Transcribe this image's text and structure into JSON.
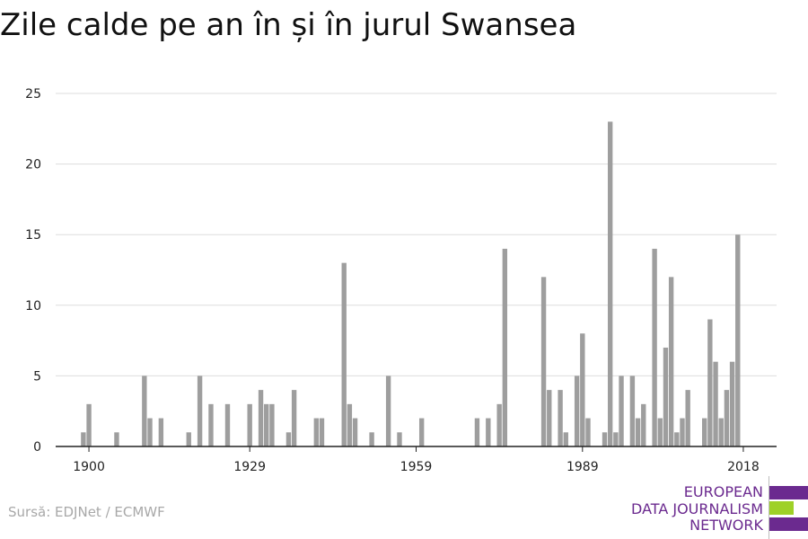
{
  "title": "Zile calde pe an în și în jurul Swansea",
  "source": "Sursă: EDJNet / ECMWF",
  "logo": {
    "lines": [
      "EUROPEAN",
      "DATA JOURNALISM",
      "NETWORK"
    ],
    "text_color": "#6b2a8f",
    "bar_colors": [
      "#6b2a8f",
      "#9ed127",
      "#6b2a8f"
    ]
  },
  "colors": {
    "bar": "#9e9e9e",
    "grid": "#dddddd",
    "axis": "#222222"
  },
  "chart_data": {
    "type": "bar",
    "title": "Zile calde pe an în și în jurul Swansea",
    "xlabel": "",
    "ylabel": "",
    "xlim": [
      1894,
      2024
    ],
    "ylim": [
      0,
      25
    ],
    "y_ticks": [
      0,
      5,
      10,
      15,
      20,
      25
    ],
    "x_ticks": [
      1900,
      1929,
      1959,
      1989,
      2018
    ],
    "grid": true,
    "x": [
      1899,
      1900,
      1905,
      1910,
      1911,
      1913,
      1918,
      1920,
      1922,
      1925,
      1929,
      1931,
      1932,
      1933,
      1936,
      1937,
      1941,
      1942,
      1946,
      1947,
      1948,
      1951,
      1954,
      1956,
      1960,
      1970,
      1972,
      1974,
      1975,
      1982,
      1983,
      1985,
      1986,
      1988,
      1989,
      1990,
      1993,
      1994,
      1995,
      1996,
      1998,
      1999,
      2000,
      2002,
      2003,
      2004,
      2005,
      2006,
      2007,
      2008,
      2011,
      2012,
      2013,
      2014,
      2015,
      2016,
      2017
    ],
    "values": [
      1,
      3,
      1,
      5,
      2,
      2,
      1,
      5,
      3,
      3,
      3,
      4,
      3,
      3,
      1,
      4,
      2,
      2,
      13,
      3,
      2,
      1,
      5,
      1,
      2,
      2,
      2,
      3,
      14,
      12,
      4,
      4,
      1,
      5,
      8,
      2,
      1,
      23,
      1,
      5,
      5,
      2,
      3,
      14,
      2,
      7,
      12,
      1,
      2,
      4,
      2,
      9,
      6,
      2,
      4,
      6,
      15
    ]
  }
}
